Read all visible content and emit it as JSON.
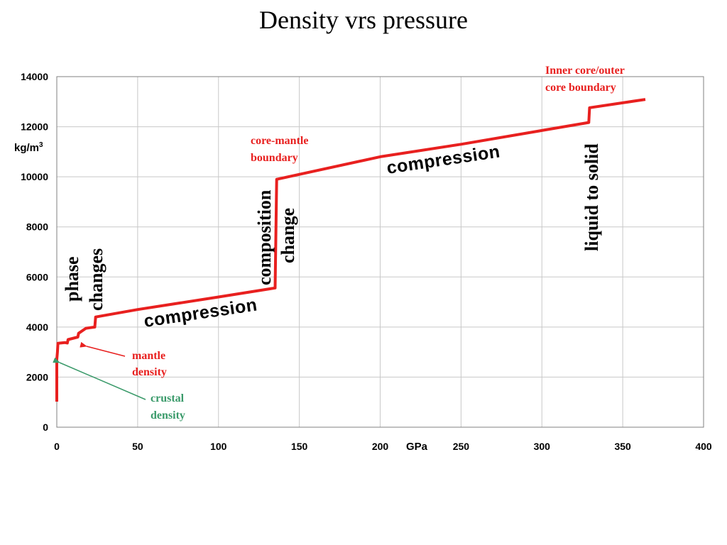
{
  "chart_data": {
    "type": "line",
    "title": "Density vrs pressure",
    "xlabel": "GPa",
    "ylabel": "kg/m",
    "ylabel_sup": "3",
    "xlim": [
      0,
      400
    ],
    "ylim": [
      0,
      14000
    ],
    "x_ticks": [
      0,
      50,
      100,
      150,
      200,
      250,
      300,
      350,
      400
    ],
    "y_ticks": [
      0,
      2000,
      4000,
      6000,
      8000,
      10000,
      12000,
      14000
    ],
    "grid": true,
    "series": [
      {
        "color": "#e8201f",
        "points": [
          [
            0,
            1020
          ],
          [
            0,
            2700
          ],
          [
            0.4,
            3000
          ],
          [
            0.7,
            3350
          ],
          [
            5,
            3380
          ],
          [
            6.5,
            3360
          ],
          [
            7,
            3500
          ],
          [
            13,
            3600
          ],
          [
            13.5,
            3750
          ],
          [
            18,
            3950
          ],
          [
            23.5,
            4000
          ],
          [
            24,
            4400
          ],
          [
            50,
            4700
          ],
          [
            100,
            5200
          ],
          [
            135,
            5560
          ],
          [
            136,
            9900
          ],
          [
            200,
            10800
          ],
          [
            250,
            11300
          ],
          [
            329,
            12170
          ],
          [
            329.5,
            12760
          ],
          [
            364,
            13090
          ]
        ]
      }
    ],
    "annotations": {
      "inner_core": [
        "Inner core/outer",
        "core boundary"
      ],
      "core_mantle": [
        "core-mantle",
        "boundary"
      ],
      "compression_upper": "compression",
      "compression_lower": "compression",
      "liquid_to_solid": "liquid to solid",
      "composition_change": [
        "composition",
        "change"
      ],
      "phase_changes": [
        "phase",
        "changes"
      ],
      "mantle_density": [
        "mantle",
        "density"
      ],
      "crustal_density": [
        "crustal",
        "density"
      ]
    },
    "colors": {
      "line": "#e8201f",
      "mantle_arrow": "#e8201f",
      "crustal_arrow": "#3a9a6a"
    }
  }
}
